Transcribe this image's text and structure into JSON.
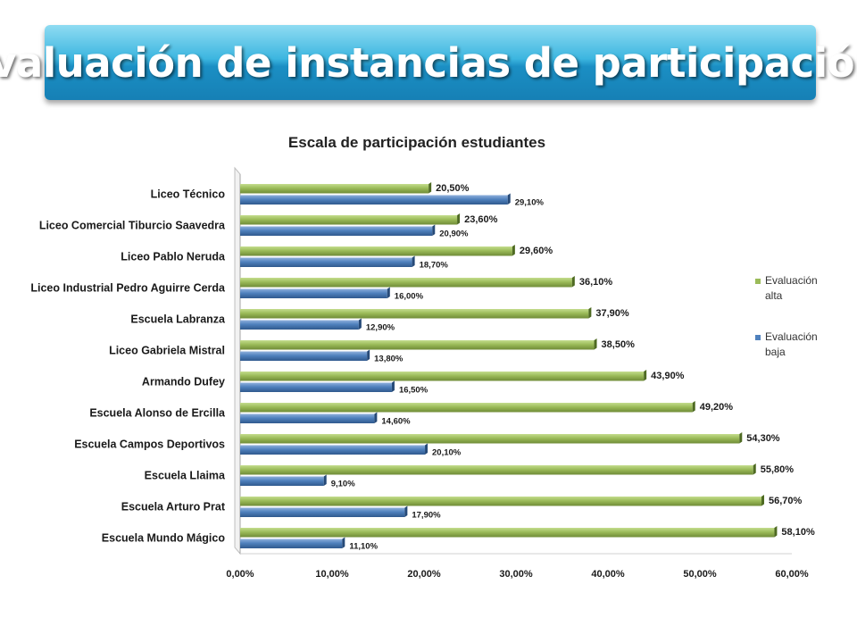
{
  "header": {
    "title": "Evaluación de instancias de participación."
  },
  "chart_data": {
    "type": "bar",
    "orientation": "horizontal",
    "title": "Escala de participación estudiantes",
    "categories": [
      "Liceo Técnico",
      "Liceo Comercial Tiburcio Saavedra",
      "Liceo Pablo Neruda",
      "Liceo Industrial Pedro Aguirre Cerda",
      "Escuela Labranza",
      "Liceo Gabriela Mistral",
      "Armando Dufey",
      "Escuela Alonso de Ercilla",
      "Escuela Campos Deportivos",
      "Escuela Llaima",
      "Escuela Arturo Prat",
      "Escuela Mundo Mágico"
    ],
    "series": [
      {
        "name": "Evaluación alta",
        "color": "#9bbb59",
        "values": [
          20.5,
          23.6,
          29.6,
          36.1,
          37.9,
          38.5,
          43.9,
          49.2,
          54.3,
          55.8,
          56.7,
          58.1
        ],
        "labels": [
          "20,50%",
          "23,60%",
          "29,60%",
          "36,10%",
          "37,90%",
          "38,50%",
          "43,90%",
          "49,20%",
          "54,30%",
          "55,80%",
          "56,70%",
          "58,10%"
        ]
      },
      {
        "name": "Evaluación baja",
        "color": "#4f81bd",
        "values": [
          29.1,
          20.9,
          18.7,
          16.0,
          12.9,
          13.8,
          16.5,
          14.6,
          20.1,
          9.1,
          17.9,
          11.1
        ],
        "labels": [
          "29,10%",
          "20,90%",
          "18,70%",
          "16,00%",
          "12,90%",
          "13,80%",
          "16,50%",
          "14,60%",
          "20,10%",
          "9,10%",
          "17,90%",
          "11,10%"
        ]
      }
    ],
    "legend": [
      {
        "line1": "Evaluación",
        "line2": "alta",
        "color": "#9bbb59"
      },
      {
        "line1": "Evaluación",
        "line2": "baja",
        "color": "#4f81bd"
      }
    ],
    "xlim": [
      0,
      60
    ],
    "x_ticks": [
      "0,00%",
      "10,00%",
      "20,00%",
      "30,00%",
      "40,00%",
      "50,00%",
      "60,00%"
    ],
    "legend_position": "right",
    "grid": false
  }
}
